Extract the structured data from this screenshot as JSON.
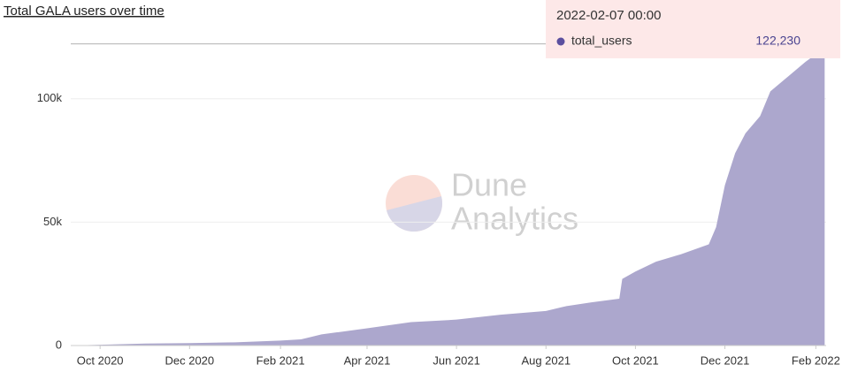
{
  "chart_data": {
    "type": "area",
    "title": "Total GALA users over time",
    "watermark": [
      "Dune",
      "Analytics"
    ],
    "series": [
      {
        "name": "total_users",
        "color": "#aca7cd",
        "marker_color": "#5b4f9f",
        "x": [
          "2020-09-11",
          "2020-10-01",
          "2020-11-01",
          "2020-12-01",
          "2021-01-01",
          "2021-02-01",
          "2021-02-15",
          "2021-03-01",
          "2021-04-01",
          "2021-05-01",
          "2021-06-01",
          "2021-07-01",
          "2021-08-01",
          "2021-08-15",
          "2021-09-01",
          "2021-09-20",
          "2021-09-22",
          "2021-10-01",
          "2021-10-15",
          "2021-11-01",
          "2021-11-20",
          "2021-11-25",
          "2021-12-01",
          "2021-12-08",
          "2021-12-15",
          "2021-12-25",
          "2022-01-01",
          "2022-01-15",
          "2022-01-25",
          "2022-02-01",
          "2022-02-07"
        ],
        "values": [
          0,
          300,
          800,
          1000,
          1300,
          2000,
          2500,
          4500,
          7000,
          9500,
          10500,
          12500,
          14000,
          16000,
          17500,
          19000,
          27000,
          30000,
          34000,
          37000,
          41000,
          48000,
          65000,
          78000,
          86000,
          93000,
          103000,
          110000,
          115000,
          118000,
          122230
        ]
      }
    ],
    "tooltip": {
      "title": "2022-02-07 00:00",
      "value": 122230,
      "value_label": "122,230"
    },
    "xlim": [
      "2020-09-11",
      "2022-02-08"
    ],
    "xticks": [
      {
        "value": "2020-10-01",
        "label": "Oct 2020"
      },
      {
        "value": "2020-12-01",
        "label": "Dec 2020"
      },
      {
        "value": "2021-02-01",
        "label": "Feb 2021"
      },
      {
        "value": "2021-04-01",
        "label": "Apr 2021"
      },
      {
        "value": "2021-06-01",
        "label": "Jun 2021"
      },
      {
        "value": "2021-08-01",
        "label": "Aug 2021"
      },
      {
        "value": "2021-10-01",
        "label": "Oct 2021"
      },
      {
        "value": "2021-12-01",
        "label": "Dec 2021"
      },
      {
        "value": "2022-02-01",
        "label": "Feb 2022"
      }
    ],
    "ylim": [
      0,
      125000
    ],
    "yticks": [
      0,
      {
        "value": 50000,
        "label": "50k"
      },
      {
        "value": 100000,
        "label": "100k"
      }
    ],
    "grid": true
  }
}
